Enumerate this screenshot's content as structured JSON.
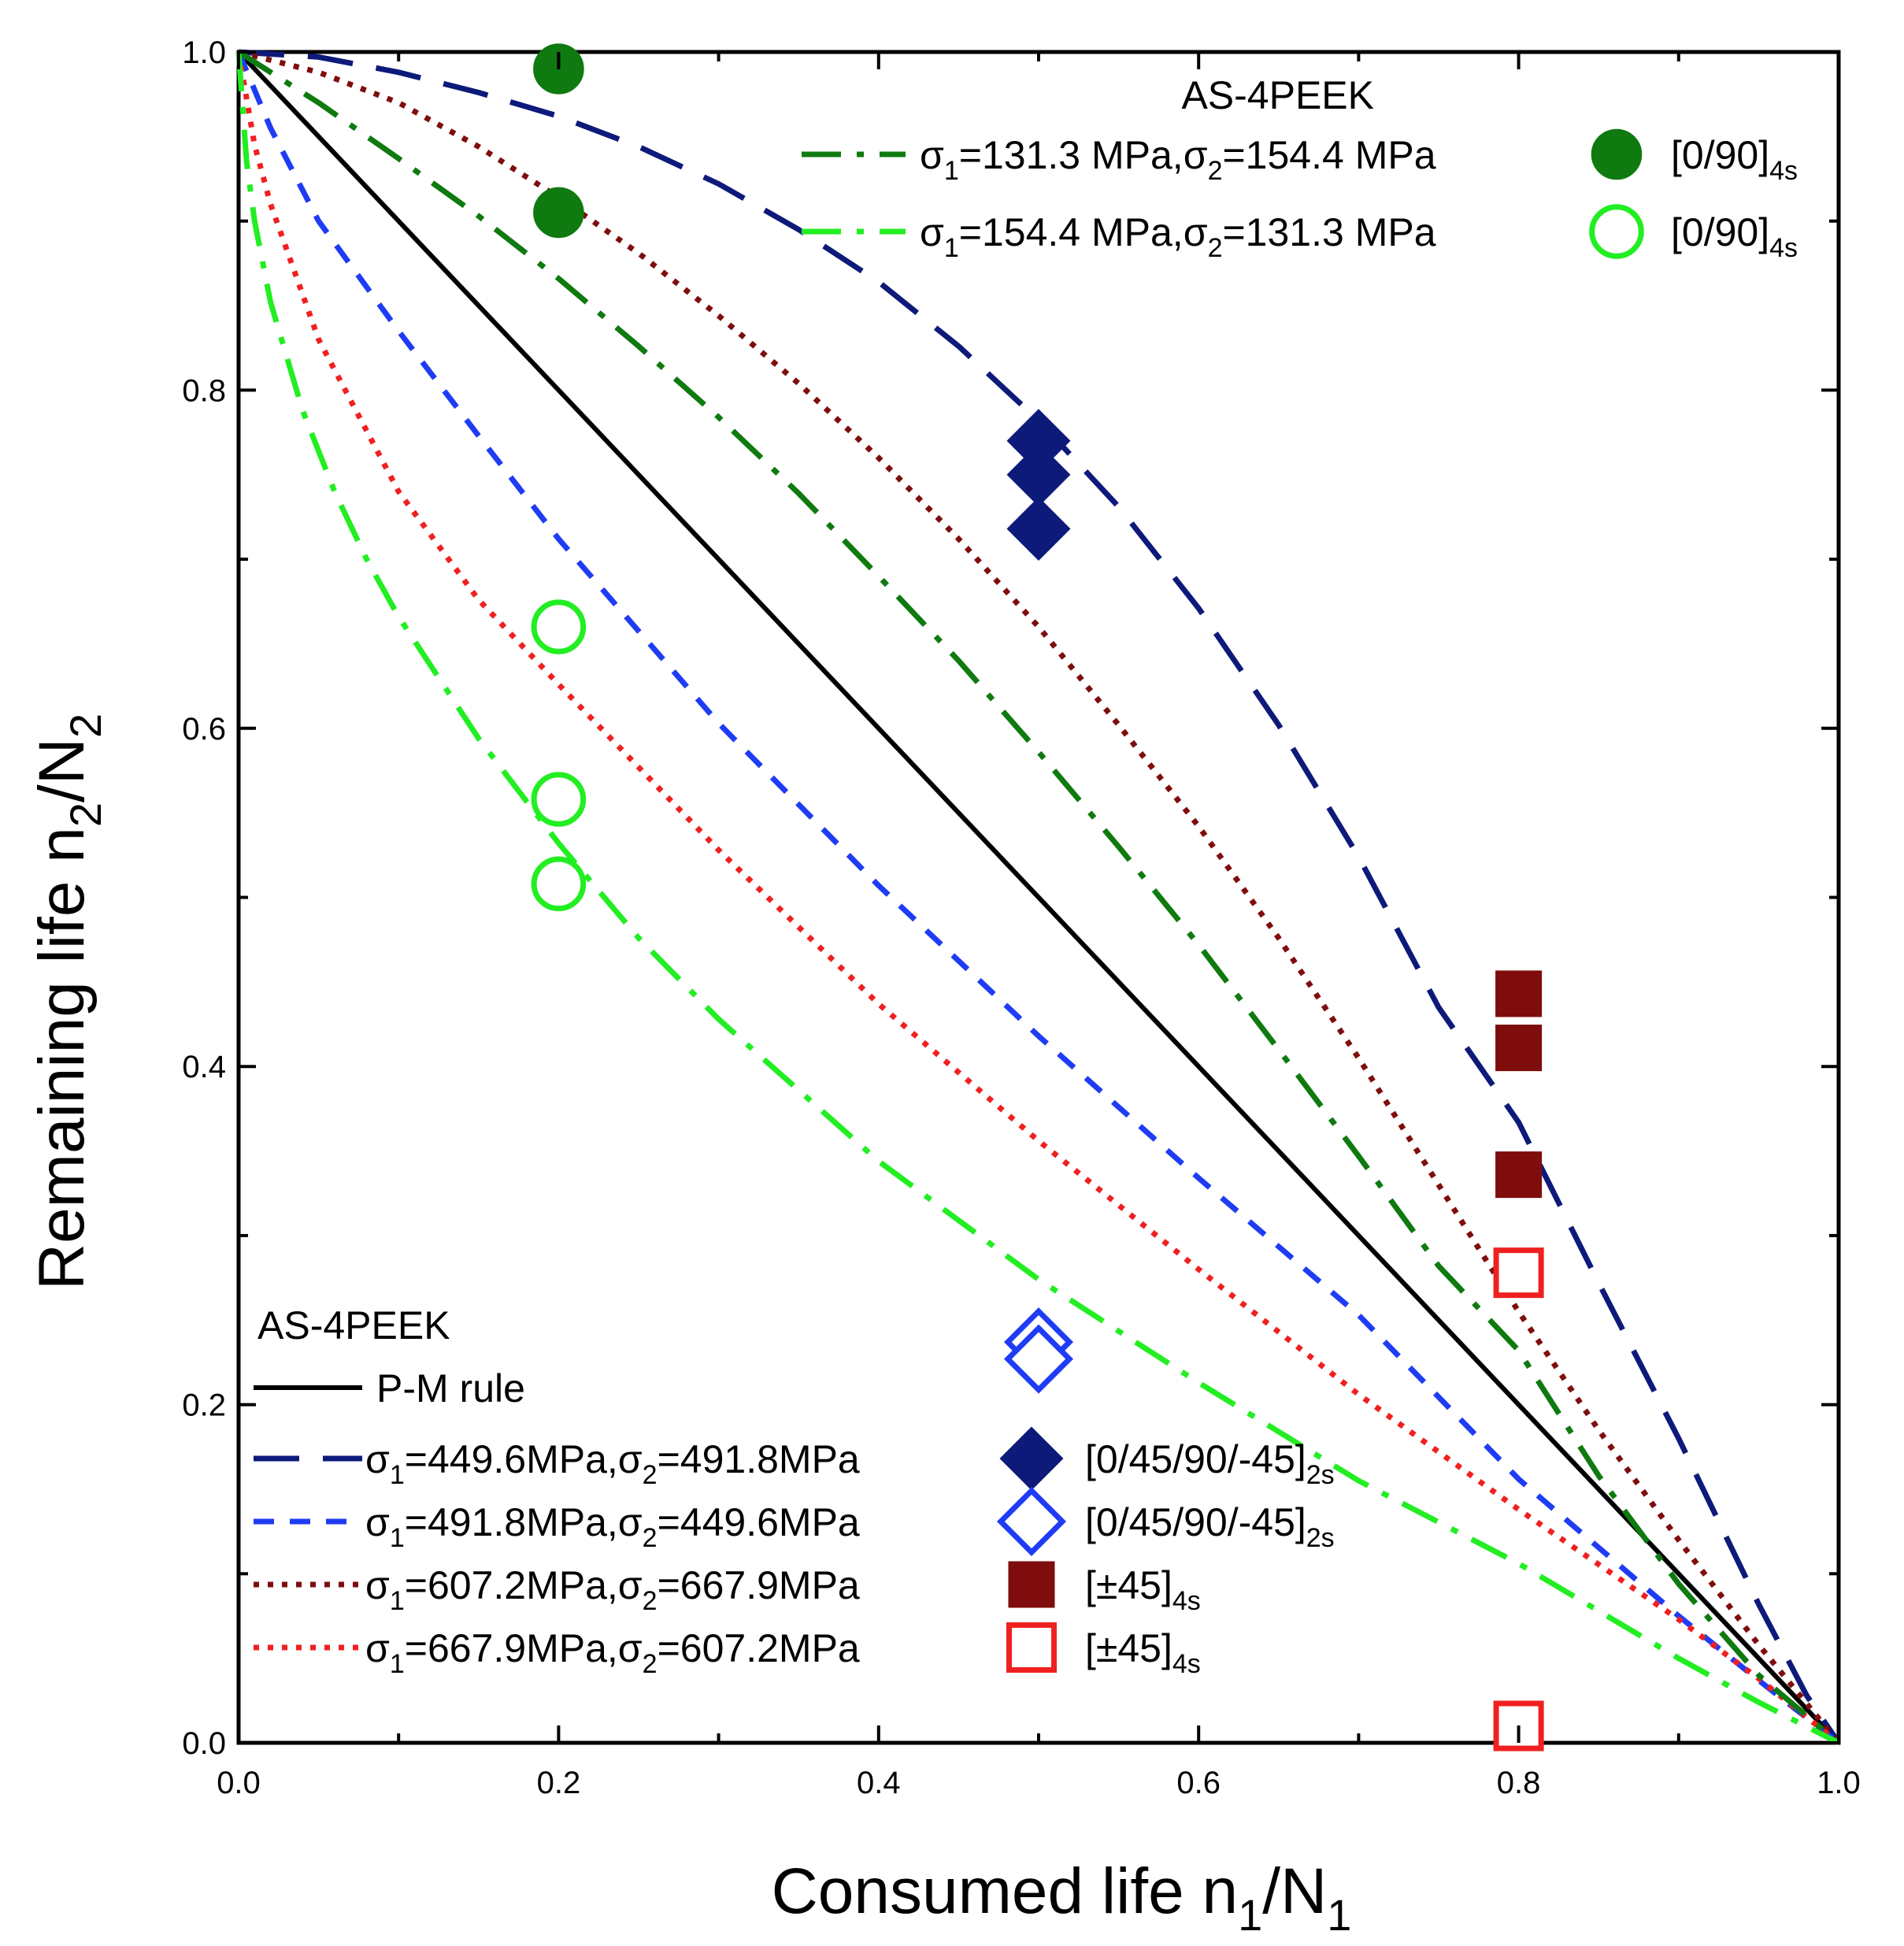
{
  "chart_data": {
    "type": "line",
    "title": "",
    "xlabel": {
      "main": "Consumed life n",
      "sub1": "1",
      "mid": "/N",
      "sub2": "1"
    },
    "ylabel": {
      "main": "Remaining life n",
      "sub1": "2",
      "mid": "/N",
      "sub2": "2"
    },
    "xlim": [
      0.0,
      1.0
    ],
    "ylim": [
      0.0,
      1.0
    ],
    "xticks": [
      "0.0",
      "0.2",
      "0.4",
      "0.6",
      "0.8",
      "1.0"
    ],
    "yticks": [
      "0.0",
      "0.2",
      "0.4",
      "0.6",
      "0.8",
      "1.0"
    ],
    "grid": false,
    "colors": {
      "pm": "#000000",
      "navy": "#0d1a7a",
      "blue": "#1f3cf5",
      "maroon": "#7f0d0d",
      "red": "#f02020",
      "green": "#0f7a0f",
      "lime": "#22ee22"
    },
    "series": [
      {
        "name": "P-M rule",
        "color_key": "pm",
        "style": "solid",
        "x": [
          0,
          1
        ],
        "y": [
          1,
          0
        ]
      },
      {
        "name": "σ1=449.6MPa,σ2=491.8MPa",
        "color_key": "navy",
        "style": "longdash",
        "x": [
          0,
          0.05,
          0.1,
          0.15,
          0.2,
          0.25,
          0.3,
          0.35,
          0.4,
          0.45,
          0.5,
          0.55,
          0.6,
          0.65,
          0.7,
          0.75,
          0.8,
          0.85,
          0.9,
          0.95,
          0.98,
          1.0
        ],
        "y": [
          1.0,
          0.997,
          0.988,
          0.976,
          0.962,
          0.944,
          0.922,
          0.895,
          0.864,
          0.826,
          0.782,
          0.731,
          0.671,
          0.602,
          0.524,
          0.435,
          0.367,
          0.272,
          0.18,
          0.082,
          0.028,
          0.0
        ]
      },
      {
        "name": "σ1=491.8MPa,σ2=449.6MPa",
        "color_key": "blue",
        "style": "shortdash",
        "x": [
          0,
          0.02,
          0.05,
          0.1,
          0.15,
          0.2,
          0.3,
          0.4,
          0.5,
          0.6,
          0.7,
          0.8,
          0.9,
          0.95,
          1.0
        ],
        "y": [
          1.0,
          0.955,
          0.9,
          0.835,
          0.773,
          0.712,
          0.603,
          0.507,
          0.418,
          0.334,
          0.253,
          0.156,
          0.075,
          0.037,
          0.0
        ]
      },
      {
        "name": "σ1=607.2MPa,σ2=667.9MPa",
        "color_key": "maroon",
        "style": "dot",
        "x": [
          0,
          0.05,
          0.1,
          0.15,
          0.2,
          0.25,
          0.3,
          0.35,
          0.4,
          0.45,
          0.5,
          0.55,
          0.6,
          0.65,
          0.7,
          0.75,
          0.8,
          0.85,
          0.9,
          0.95,
          1.0
        ],
        "y": [
          1.0,
          0.988,
          0.97,
          0.944,
          0.914,
          0.881,
          0.844,
          0.804,
          0.76,
          0.712,
          0.66,
          0.602,
          0.542,
          0.476,
          0.405,
          0.33,
          0.255,
          0.185,
          0.12,
          0.058,
          0.0
        ]
      },
      {
        "name": "σ1=667.9MPa,σ2=607.2MPa",
        "color_key": "red",
        "style": "dot",
        "x": [
          0,
          0.01,
          0.02,
          0.05,
          0.1,
          0.15,
          0.2,
          0.3,
          0.4,
          0.5,
          0.6,
          0.7,
          0.8,
          0.9,
          0.95,
          1.0
        ],
        "y": [
          1.0,
          0.945,
          0.91,
          0.83,
          0.74,
          0.676,
          0.626,
          0.528,
          0.437,
          0.356,
          0.28,
          0.206,
          0.138,
          0.073,
          0.038,
          0.0
        ]
      },
      {
        "name": "σ1=131.3 MPa,σ2=154.4 MPa",
        "color_key": "green",
        "style": "dashdot",
        "x": [
          0,
          0.05,
          0.1,
          0.15,
          0.2,
          0.25,
          0.3,
          0.35,
          0.4,
          0.45,
          0.5,
          0.55,
          0.6,
          0.65,
          0.7,
          0.75,
          0.8,
          0.85,
          0.9,
          0.95,
          1.0
        ],
        "y": [
          1.0,
          0.97,
          0.937,
          0.903,
          0.866,
          0.826,
          0.784,
          0.739,
          0.69,
          0.64,
          0.586,
          0.53,
          0.472,
          0.41,
          0.347,
          0.282,
          0.232,
          0.158,
          0.094,
          0.04,
          0.0
        ]
      },
      {
        "name": "σ1=154.4 MPa,σ2=131.3 MPa",
        "color_key": "lime",
        "style": "dashdot",
        "x": [
          0,
          0.005,
          0.01,
          0.02,
          0.04,
          0.06,
          0.08,
          0.1,
          0.15,
          0.2,
          0.25,
          0.3,
          0.4,
          0.5,
          0.6,
          0.7,
          0.8,
          0.9,
          0.95,
          1.0
        ],
        "y": [
          1.0,
          0.935,
          0.9,
          0.852,
          0.788,
          0.74,
          0.7,
          0.666,
          0.594,
          0.532,
          0.476,
          0.428,
          0.344,
          0.274,
          0.213,
          0.155,
          0.106,
          0.05,
          0.024,
          0.0
        ]
      }
    ],
    "markers": [
      {
        "name": "[0/90]4s filled",
        "shape": "circle",
        "filled": true,
        "color_key": "green",
        "points": [
          [
            0.2,
            0.99
          ],
          [
            0.2,
            0.905
          ]
        ]
      },
      {
        "name": "[0/90]4s open",
        "shape": "circle",
        "filled": false,
        "color_key": "lime",
        "points": [
          [
            0.2,
            0.66
          ],
          [
            0.2,
            0.558
          ],
          [
            0.2,
            0.508
          ]
        ]
      },
      {
        "name": "[0/45/90/-45]2s filled",
        "shape": "diamond",
        "filled": true,
        "color_key": "navy",
        "points": [
          [
            0.5,
            0.77
          ],
          [
            0.5,
            0.75
          ],
          [
            0.5,
            0.718
          ]
        ]
      },
      {
        "name": "[0/45/90/-45]2s open",
        "shape": "diamond",
        "filled": false,
        "color_key": "blue",
        "points": [
          [
            0.5,
            0.237
          ],
          [
            0.5,
            0.227
          ]
        ]
      },
      {
        "name": "[±45]4s filled",
        "shape": "square",
        "filled": true,
        "color_key": "maroon",
        "points": [
          [
            0.8,
            0.443
          ],
          [
            0.8,
            0.411
          ],
          [
            0.8,
            0.336
          ]
        ]
      },
      {
        "name": "[±45]4s open",
        "shape": "square",
        "filled": false,
        "color_key": "red",
        "points": [
          [
            0.8,
            0.278
          ],
          [
            0.8,
            0.01
          ]
        ]
      }
    ],
    "legend_top": {
      "placement": "top-right",
      "title": "AS-4PEEK",
      "entries": [
        {
          "line_color_key": "green",
          "line_style": "dashdot",
          "marker_shape": "circle",
          "marker_filled": true,
          "marker_color_key": "green",
          "label_parts": [
            "σ",
            "1",
            "=131.3 MPa,σ",
            "2",
            "=154.4 MPa"
          ],
          "marker_label": [
            "[0/90]",
            "4s"
          ]
        },
        {
          "line_color_key": "lime",
          "line_style": "dashdot",
          "marker_shape": "circle",
          "marker_filled": false,
          "marker_color_key": "lime",
          "label_parts": [
            "σ",
            "1",
            "=154.4 MPa,σ",
            "2",
            "=131.3 MPa"
          ],
          "marker_label": [
            "[0/90]",
            "4s"
          ]
        }
      ]
    },
    "legend_bottom": {
      "placement": "bottom-left",
      "title": "AS-4PEEK",
      "pm_label": "P-M rule",
      "entries": [
        {
          "line_color_key": "navy",
          "line_style": "longdash",
          "marker_shape": "diamond",
          "marker_filled": true,
          "marker_color_key": "navy",
          "label_parts": [
            "σ",
            "1",
            "=449.6MPa,σ",
            "2",
            "=491.8MPa"
          ],
          "marker_label": [
            "[0/45/90/-45]",
            "2s"
          ]
        },
        {
          "line_color_key": "blue",
          "line_style": "shortdash",
          "marker_shape": "diamond",
          "marker_filled": false,
          "marker_color_key": "blue",
          "label_parts": [
            "σ",
            "1",
            "=491.8MPa,σ",
            "2",
            "=449.6MPa"
          ],
          "marker_label": [
            "[0/45/90/-45]",
            "2s"
          ]
        },
        {
          "line_color_key": "maroon",
          "line_style": "dot",
          "marker_shape": "square",
          "marker_filled": true,
          "marker_color_key": "maroon",
          "label_parts": [
            "σ",
            "1",
            "=607.2MPa,σ",
            "2",
            "=667.9MPa"
          ],
          "marker_label": [
            "[±45]",
            "4s"
          ]
        },
        {
          "line_color_key": "red",
          "line_style": "dot",
          "marker_shape": "square",
          "marker_filled": false,
          "marker_color_key": "red",
          "label_parts": [
            "σ",
            "1",
            "=667.9MPa,σ",
            "2",
            "=607.2MPa"
          ],
          "marker_label": [
            "[±45]",
            "4s"
          ]
        }
      ]
    }
  }
}
